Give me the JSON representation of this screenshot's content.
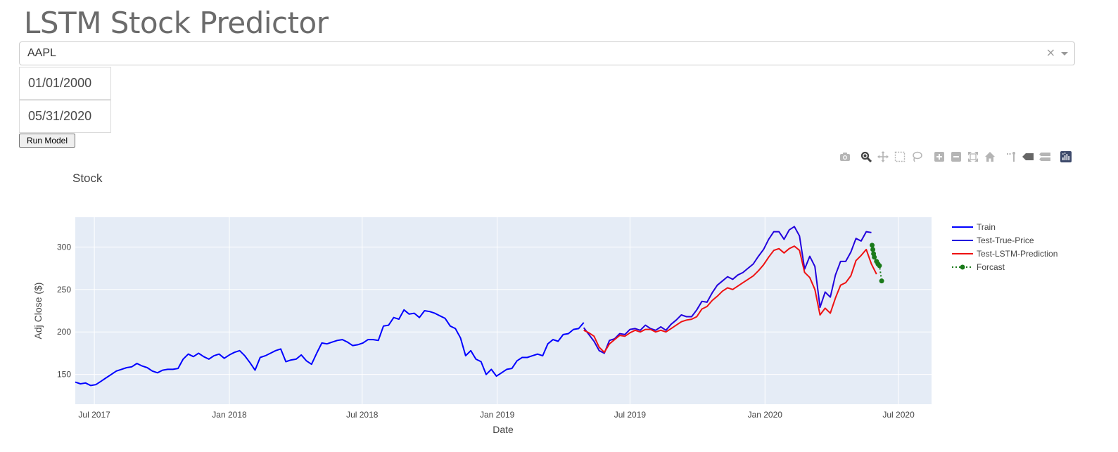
{
  "app": {
    "title": "LSTM Stock Predictor"
  },
  "ticker_dropdown": {
    "selected": "AAPL",
    "clear_glyph": "×"
  },
  "date_range": {
    "start": "01/01/2000",
    "end": "05/31/2020"
  },
  "run_button": {
    "label": "Run Model"
  },
  "modebar": {
    "icons": [
      "camera-icon",
      "zoom-icon",
      "pan-icon",
      "box-select-icon",
      "lasso-select-icon",
      "zoom-in-icon",
      "zoom-out-icon",
      "autoscale-icon",
      "reset-axes-icon",
      "spike-lines-icon",
      "hover-closest-icon",
      "hover-compare-icon",
      "plotly-logo-icon"
    ]
  },
  "chart_data": {
    "type": "line",
    "title": "Stock",
    "xlabel": "Date",
    "ylabel": "Adj Close ($)",
    "xlim": [
      "2017-06-05",
      "2020-08-15"
    ],
    "ylim": [
      115,
      335
    ],
    "x_ticks": [
      {
        "date": "2017-07-01",
        "label": "Jul 2017"
      },
      {
        "date": "2018-01-01",
        "label": "Jan 2018"
      },
      {
        "date": "2018-07-01",
        "label": "Jul 2018"
      },
      {
        "date": "2019-01-01",
        "label": "Jan 2019"
      },
      {
        "date": "2019-07-01",
        "label": "Jul 2019"
      },
      {
        "date": "2020-01-01",
        "label": "Jan 2020"
      },
      {
        "date": "2020-07-01",
        "label": "Jul 2020"
      }
    ],
    "y_ticks": [
      150,
      200,
      250,
      300
    ],
    "grid": true,
    "legend_position": "right",
    "background": "#e5ecf6",
    "series": [
      {
        "name": "Train",
        "color": "#0000ff",
        "dash": "solid",
        "markers": false,
        "points": [
          [
            "2017-06-05",
            141
          ],
          [
            "2017-06-12",
            139
          ],
          [
            "2017-06-19",
            140
          ],
          [
            "2017-06-26",
            137
          ],
          [
            "2017-07-03",
            138
          ],
          [
            "2017-07-10",
            142
          ],
          [
            "2017-07-17",
            146
          ],
          [
            "2017-07-24",
            150
          ],
          [
            "2017-07-31",
            154
          ],
          [
            "2017-08-07",
            156
          ],
          [
            "2017-08-14",
            158
          ],
          [
            "2017-08-21",
            159
          ],
          [
            "2017-08-28",
            163
          ],
          [
            "2017-09-04",
            160
          ],
          [
            "2017-09-11",
            158
          ],
          [
            "2017-09-18",
            154
          ],
          [
            "2017-09-25",
            152
          ],
          [
            "2017-10-02",
            155
          ],
          [
            "2017-10-09",
            156
          ],
          [
            "2017-10-16",
            156
          ],
          [
            "2017-10-23",
            157
          ],
          [
            "2017-10-30",
            168
          ],
          [
            "2017-11-06",
            174
          ],
          [
            "2017-11-13",
            171
          ],
          [
            "2017-11-20",
            175
          ],
          [
            "2017-11-27",
            171
          ],
          [
            "2017-12-04",
            168
          ],
          [
            "2017-12-11",
            172
          ],
          [
            "2017-12-18",
            174
          ],
          [
            "2017-12-25",
            169
          ],
          [
            "2018-01-01",
            173
          ],
          [
            "2018-01-08",
            176
          ],
          [
            "2018-01-15",
            178
          ],
          [
            "2018-01-22",
            172
          ],
          [
            "2018-01-29",
            164
          ],
          [
            "2018-02-05",
            155
          ],
          [
            "2018-02-12",
            170
          ],
          [
            "2018-02-19",
            172
          ],
          [
            "2018-02-26",
            175
          ],
          [
            "2018-03-05",
            178
          ],
          [
            "2018-03-12",
            180
          ],
          [
            "2018-03-19",
            165
          ],
          [
            "2018-03-26",
            167
          ],
          [
            "2018-04-02",
            168
          ],
          [
            "2018-04-09",
            173
          ],
          [
            "2018-04-16",
            166
          ],
          [
            "2018-04-23",
            162
          ],
          [
            "2018-04-30",
            175
          ],
          [
            "2018-05-07",
            187
          ],
          [
            "2018-05-14",
            186
          ],
          [
            "2018-05-21",
            188
          ],
          [
            "2018-05-28",
            190
          ],
          [
            "2018-06-04",
            191
          ],
          [
            "2018-06-11",
            188
          ],
          [
            "2018-06-18",
            184
          ],
          [
            "2018-06-25",
            185
          ],
          [
            "2018-07-02",
            187
          ],
          [
            "2018-07-09",
            191
          ],
          [
            "2018-07-16",
            191
          ],
          [
            "2018-07-23",
            190
          ],
          [
            "2018-07-30",
            207
          ],
          [
            "2018-08-06",
            208
          ],
          [
            "2018-08-13",
            217
          ],
          [
            "2018-08-20",
            215
          ],
          [
            "2018-08-27",
            226
          ],
          [
            "2018-09-03",
            221
          ],
          [
            "2018-09-10",
            222
          ],
          [
            "2018-09-17",
            217
          ],
          [
            "2018-09-24",
            225
          ],
          [
            "2018-10-01",
            224
          ],
          [
            "2018-10-08",
            222
          ],
          [
            "2018-10-15",
            219
          ],
          [
            "2018-10-22",
            216
          ],
          [
            "2018-10-29",
            207
          ],
          [
            "2018-11-05",
            204
          ],
          [
            "2018-11-12",
            193
          ],
          [
            "2018-11-19",
            172
          ],
          [
            "2018-11-26",
            178
          ],
          [
            "2018-12-03",
            168
          ],
          [
            "2018-12-10",
            165
          ],
          [
            "2018-12-17",
            150
          ],
          [
            "2018-12-24",
            156
          ],
          [
            "2018-12-31",
            148
          ],
          [
            "2019-01-07",
            152
          ],
          [
            "2019-01-14",
            156
          ],
          [
            "2019-01-21",
            157
          ],
          [
            "2019-01-28",
            166
          ],
          [
            "2019-02-04",
            170
          ],
          [
            "2019-02-11",
            170
          ],
          [
            "2019-02-18",
            172
          ],
          [
            "2019-02-25",
            174
          ],
          [
            "2019-03-04",
            172
          ],
          [
            "2019-03-11",
            186
          ],
          [
            "2019-03-18",
            191
          ],
          [
            "2019-03-25",
            189
          ],
          [
            "2019-04-01",
            197
          ],
          [
            "2019-04-08",
            198
          ],
          [
            "2019-04-15",
            203
          ],
          [
            "2019-04-22",
            204
          ],
          [
            "2019-04-29",
            211
          ]
        ]
      },
      {
        "name": "Test-True-Price",
        "color": "#2200dd",
        "dash": "solid",
        "markers": false,
        "points": [
          [
            "2019-04-29",
            205
          ],
          [
            "2019-05-06",
            197
          ],
          [
            "2019-05-13",
            189
          ],
          [
            "2019-05-20",
            178
          ],
          [
            "2019-05-27",
            175
          ],
          [
            "2019-06-03",
            190
          ],
          [
            "2019-06-10",
            192
          ],
          [
            "2019-06-17",
            198
          ],
          [
            "2019-06-24",
            197
          ],
          [
            "2019-07-01",
            203
          ],
          [
            "2019-07-08",
            204
          ],
          [
            "2019-07-15",
            202
          ],
          [
            "2019-07-22",
            208
          ],
          [
            "2019-07-29",
            204
          ],
          [
            "2019-08-05",
            202
          ],
          [
            "2019-08-12",
            206
          ],
          [
            "2019-08-19",
            202
          ],
          [
            "2019-08-26",
            209
          ],
          [
            "2019-09-02",
            214
          ],
          [
            "2019-09-09",
            220
          ],
          [
            "2019-09-16",
            218
          ],
          [
            "2019-09-23",
            218
          ],
          [
            "2019-09-30",
            226
          ],
          [
            "2019-10-07",
            236
          ],
          [
            "2019-10-14",
            235
          ],
          [
            "2019-10-21",
            246
          ],
          [
            "2019-10-28",
            255
          ],
          [
            "2019-11-04",
            260
          ],
          [
            "2019-11-11",
            265
          ],
          [
            "2019-11-18",
            262
          ],
          [
            "2019-11-25",
            267
          ],
          [
            "2019-12-02",
            270
          ],
          [
            "2019-12-09",
            275
          ],
          [
            "2019-12-16",
            280
          ],
          [
            "2019-12-23",
            289
          ],
          [
            "2019-12-30",
            297
          ],
          [
            "2020-01-06",
            309
          ],
          [
            "2020-01-13",
            318
          ],
          [
            "2020-01-20",
            318
          ],
          [
            "2020-01-27",
            309
          ],
          [
            "2020-02-03",
            320
          ],
          [
            "2020-02-10",
            324
          ],
          [
            "2020-02-17",
            313
          ],
          [
            "2020-02-24",
            274
          ],
          [
            "2020-03-02",
            289
          ],
          [
            "2020-03-09",
            277
          ],
          [
            "2020-03-16",
            229
          ],
          [
            "2020-03-23",
            247
          ],
          [
            "2020-03-30",
            241
          ],
          [
            "2020-04-06",
            267
          ],
          [
            "2020-04-13",
            283
          ],
          [
            "2020-04-20",
            283
          ],
          [
            "2020-04-27",
            294
          ],
          [
            "2020-05-04",
            310
          ],
          [
            "2020-05-11",
            307
          ],
          [
            "2020-05-18",
            318
          ],
          [
            "2020-05-25",
            317
          ]
        ]
      },
      {
        "name": "Test-LSTM-Prediction",
        "color": "#ee1111",
        "dash": "solid",
        "markers": false,
        "points": [
          [
            "2019-04-29",
            202
          ],
          [
            "2019-05-06",
            199
          ],
          [
            "2019-05-13",
            195
          ],
          [
            "2019-05-20",
            182
          ],
          [
            "2019-05-27",
            176
          ],
          [
            "2019-06-03",
            186
          ],
          [
            "2019-06-10",
            191
          ],
          [
            "2019-06-17",
            196
          ],
          [
            "2019-06-24",
            195
          ],
          [
            "2019-07-01",
            199
          ],
          [
            "2019-07-08",
            202
          ],
          [
            "2019-07-15",
            200
          ],
          [
            "2019-07-22",
            203
          ],
          [
            "2019-07-29",
            203
          ],
          [
            "2019-08-05",
            200
          ],
          [
            "2019-08-12",
            202
          ],
          [
            "2019-08-19",
            200
          ],
          [
            "2019-08-26",
            204
          ],
          [
            "2019-09-02",
            208
          ],
          [
            "2019-09-09",
            212
          ],
          [
            "2019-09-16",
            214
          ],
          [
            "2019-09-23",
            215
          ],
          [
            "2019-09-30",
            218
          ],
          [
            "2019-10-07",
            227
          ],
          [
            "2019-10-14",
            230
          ],
          [
            "2019-10-21",
            237
          ],
          [
            "2019-10-28",
            242
          ],
          [
            "2019-11-04",
            248
          ],
          [
            "2019-11-11",
            252
          ],
          [
            "2019-11-18",
            250
          ],
          [
            "2019-11-25",
            254
          ],
          [
            "2019-12-02",
            258
          ],
          [
            "2019-12-09",
            262
          ],
          [
            "2019-12-16",
            266
          ],
          [
            "2019-12-23",
            272
          ],
          [
            "2019-12-30",
            279
          ],
          [
            "2020-01-06",
            288
          ],
          [
            "2020-01-13",
            296
          ],
          [
            "2020-01-20",
            298
          ],
          [
            "2020-01-27",
            293
          ],
          [
            "2020-02-03",
            298
          ],
          [
            "2020-02-10",
            301
          ],
          [
            "2020-02-17",
            296
          ],
          [
            "2020-02-24",
            270
          ],
          [
            "2020-03-02",
            264
          ],
          [
            "2020-03-09",
            250
          ],
          [
            "2020-03-16",
            220
          ],
          [
            "2020-03-23",
            228
          ],
          [
            "2020-03-30",
            222
          ],
          [
            "2020-04-06",
            240
          ],
          [
            "2020-04-13",
            255
          ],
          [
            "2020-04-20",
            258
          ],
          [
            "2020-04-27",
            266
          ],
          [
            "2020-05-04",
            284
          ],
          [
            "2020-05-11",
            290
          ],
          [
            "2020-05-18",
            297
          ],
          [
            "2020-05-25",
            280
          ],
          [
            "2020-06-01",
            268
          ]
        ]
      },
      {
        "name": "Forcast",
        "color": "#1a7a1a",
        "dash": "dot",
        "markers": true,
        "points": [
          [
            "2020-05-26",
            302
          ],
          [
            "2020-05-27",
            297
          ],
          [
            "2020-05-28",
            292
          ],
          [
            "2020-05-29",
            288
          ],
          [
            "2020-06-01",
            283
          ],
          [
            "2020-06-03",
            280
          ],
          [
            "2020-06-05",
            278
          ],
          [
            "2020-06-08",
            260
          ]
        ]
      }
    ]
  }
}
